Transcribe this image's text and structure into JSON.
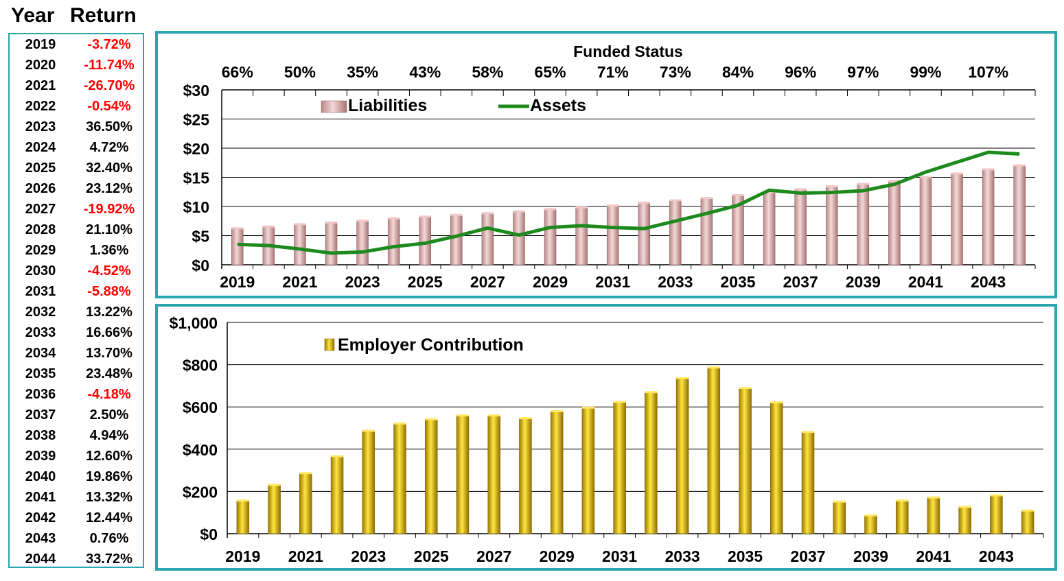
{
  "returns_table": {
    "year_header": "Year",
    "return_header": "Return",
    "rows": [
      {
        "year": "2019",
        "return": "-3.72%",
        "negative": true
      },
      {
        "year": "2020",
        "return": "-11.74%",
        "negative": true
      },
      {
        "year": "2021",
        "return": "-26.70%",
        "negative": true
      },
      {
        "year": "2022",
        "return": "-0.54%",
        "negative": true
      },
      {
        "year": "2023",
        "return": "36.50%",
        "negative": false
      },
      {
        "year": "2024",
        "return": "4.72%",
        "negative": false
      },
      {
        "year": "2025",
        "return": "32.40%",
        "negative": false
      },
      {
        "year": "2026",
        "return": "23.12%",
        "negative": false
      },
      {
        "year": "2027",
        "return": "-19.92%",
        "negative": true
      },
      {
        "year": "2028",
        "return": "21.10%",
        "negative": false
      },
      {
        "year": "2029",
        "return": "1.36%",
        "negative": false
      },
      {
        "year": "2030",
        "return": "-4.52%",
        "negative": true
      },
      {
        "year": "2031",
        "return": "-5.88%",
        "negative": true
      },
      {
        "year": "2032",
        "return": "13.22%",
        "negative": false
      },
      {
        "year": "2033",
        "return": "16.66%",
        "negative": false
      },
      {
        "year": "2034",
        "return": "13.70%",
        "negative": false
      },
      {
        "year": "2035",
        "return": "23.48%",
        "negative": false
      },
      {
        "year": "2036",
        "return": "-4.18%",
        "negative": true
      },
      {
        "year": "2037",
        "return": "2.50%",
        "negative": false
      },
      {
        "year": "2038",
        "return": "4.94%",
        "negative": false
      },
      {
        "year": "2039",
        "return": "12.60%",
        "negative": false
      },
      {
        "year": "2040",
        "return": "19.86%",
        "negative": false
      },
      {
        "year": "2041",
        "return": "13.32%",
        "negative": false
      },
      {
        "year": "2042",
        "return": "12.44%",
        "negative": false
      },
      {
        "year": "2043",
        "return": "0.76%",
        "negative": false
      },
      {
        "year": "2044",
        "return": "33.72%",
        "negative": false
      }
    ],
    "negative_color": "#ff0000",
    "positive_color": "#000000"
  },
  "chart_data": [
    {
      "type": "bar",
      "title": "Funded Status",
      "categories": [
        "2019",
        "2020",
        "2021",
        "2022",
        "2023",
        "2024",
        "2025",
        "2026",
        "2027",
        "2028",
        "2029",
        "2030",
        "2031",
        "2032",
        "2033",
        "2034",
        "2035",
        "2036",
        "2037",
        "2038",
        "2039",
        "2040",
        "2041",
        "2042",
        "2043",
        "2044"
      ],
      "x_tick_labels": [
        "2019",
        "2021",
        "2023",
        "2025",
        "2027",
        "2029",
        "2031",
        "2033",
        "2035",
        "2037",
        "2039",
        "2041",
        "2043"
      ],
      "funded_status_labels": [
        "66%",
        "50%",
        "35%",
        "43%",
        "58%",
        "65%",
        "71%",
        "73%",
        "84%",
        "96%",
        "97%",
        "99%",
        "107%"
      ],
      "y_tick_labels": [
        "$0",
        "$5",
        "$10",
        "$15",
        "$20",
        "$25",
        "$30"
      ],
      "ylim": [
        0,
        30
      ],
      "grid": true,
      "legend": "top-left",
      "series": [
        {
          "name": "Liabilities",
          "kind": "bar",
          "color": "#e8b4b4",
          "values": [
            6.2,
            6.5,
            6.9,
            7.2,
            7.5,
            7.9,
            8.2,
            8.5,
            8.8,
            9.1,
            9.5,
            9.8,
            10.1,
            10.6,
            11.0,
            11.4,
            11.9,
            12.4,
            12.9,
            13.4,
            13.8,
            14.3,
            15.0,
            15.6,
            16.3,
            17.0
          ]
        },
        {
          "name": "Assets",
          "kind": "line",
          "color": "#1e8a1e",
          "values": [
            3.5,
            3.3,
            2.7,
            2.0,
            2.2,
            3.1,
            3.7,
            4.9,
            6.3,
            5.1,
            6.4,
            6.7,
            6.4,
            6.2,
            7.5,
            8.8,
            10.2,
            12.8,
            12.3,
            12.4,
            12.7,
            13.8,
            15.9,
            17.6,
            19.3,
            19.0
          ]
        }
      ]
    },
    {
      "type": "bar",
      "categories": [
        "2019",
        "2020",
        "2021",
        "2022",
        "2023",
        "2024",
        "2025",
        "2026",
        "2027",
        "2028",
        "2029",
        "2030",
        "2031",
        "2032",
        "2033",
        "2034",
        "2035",
        "2036",
        "2037",
        "2038",
        "2039",
        "2040",
        "2041",
        "2042",
        "2043",
        "2044"
      ],
      "x_tick_labels": [
        "2019",
        "2021",
        "2023",
        "2025",
        "2027",
        "2029",
        "2031",
        "2033",
        "2035",
        "2037",
        "2039",
        "2041",
        "2043"
      ],
      "y_tick_labels": [
        "$0",
        "$200",
        "$400",
        "$600",
        "$800",
        "$1,000"
      ],
      "ylim": [
        0,
        1000
      ],
      "grid": true,
      "legend": "top-left",
      "series": [
        {
          "name": "Employer Contribution",
          "kind": "bar",
          "color": "#e6c000",
          "values": [
            155,
            230,
            285,
            365,
            485,
            520,
            540,
            558,
            558,
            545,
            578,
            595,
            622,
            668,
            735,
            785,
            688,
            620,
            480,
            150,
            85,
            155,
            170,
            125,
            180,
            108
          ]
        }
      ]
    }
  ]
}
